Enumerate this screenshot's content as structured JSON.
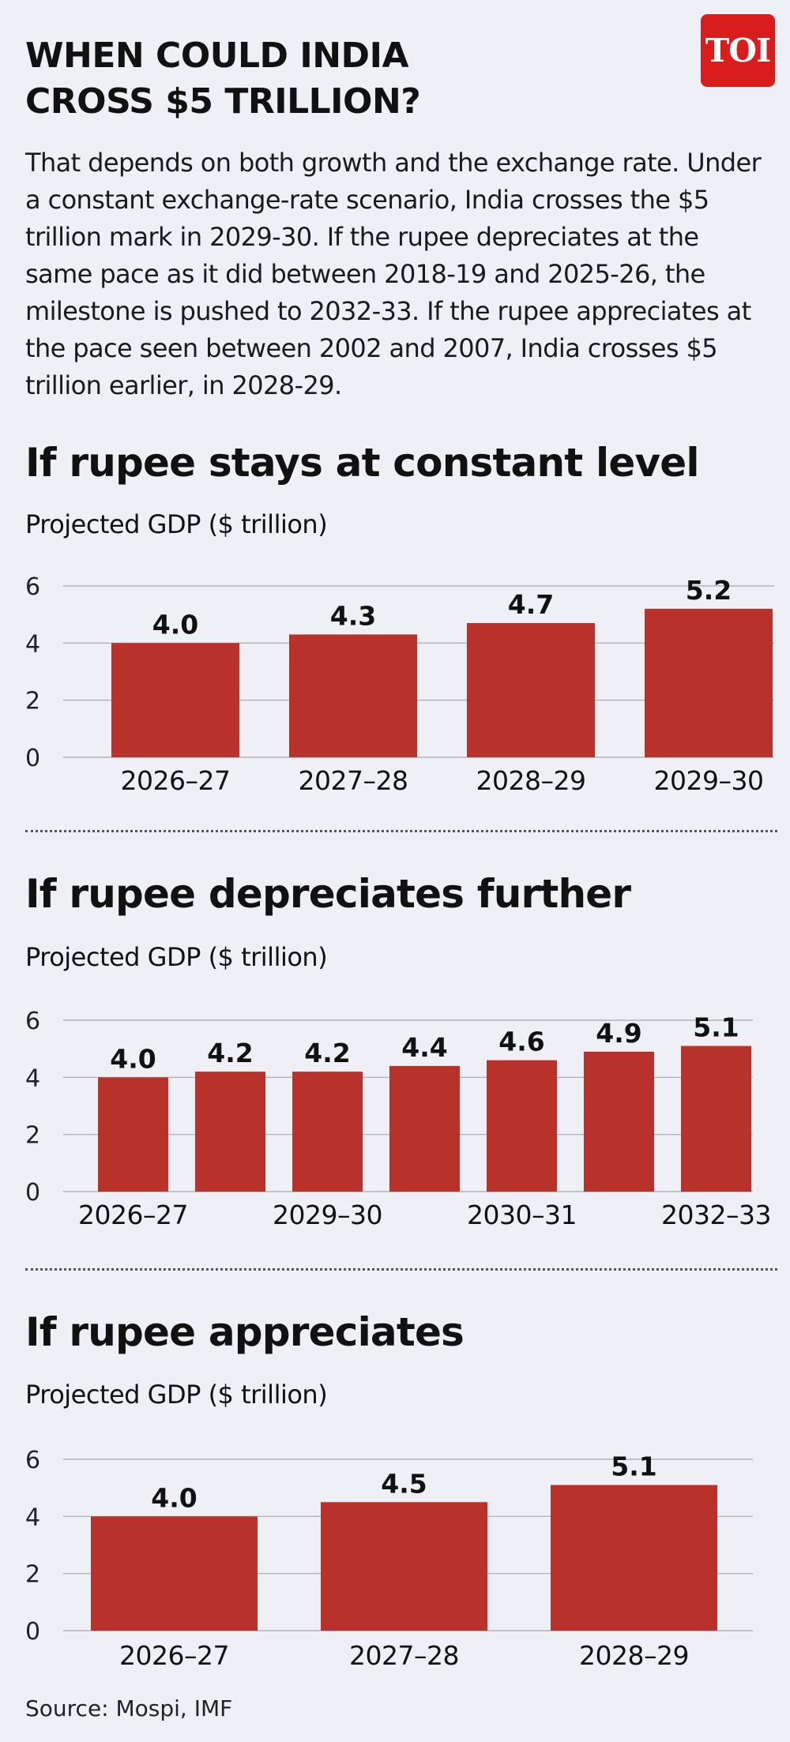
{
  "logo_text": "TOI",
  "title_line1": "WHEN COULD INDIA",
  "title_line2": "CROSS $5 TRILLION?",
  "intro": "That depends on both growth and the exchange rate. Under a constant exchange-rate scenario, India crosses the $5 trillion mark in 2029-30. If the rupee depreciates at the same pace as it did between 2018-19 and 2025-26, the milestone is pushed to 2032-33. If the rupee appreciates at the pace seen between 2002 and 2007, India crosses $5 trillion earlier, in 2028-29.",
  "colors": {
    "bar": "#b8322b",
    "grid": "#a8a8a8",
    "background": "#eef0f6"
  },
  "sections": [
    {
      "title": "If rupee stays at constant level",
      "subtitle": "Projected GDP ($ trillion)"
    },
    {
      "title": "If rupee depreciates further",
      "subtitle": "Projected GDP ($ trillion)"
    },
    {
      "title": "If rupee appreciates",
      "subtitle": "Projected GDP ($ trillion)"
    }
  ],
  "chart_data": [
    {
      "type": "bar",
      "title": "If rupee stays at constant level",
      "ylabel": "Projected GDP ($ trillion)",
      "categories": [
        "2026–27",
        "2027–28",
        "2028–29",
        "2029–30"
      ],
      "values": [
        4.0,
        4.3,
        4.7,
        5.2
      ],
      "value_labels": [
        "4.0",
        "4.3",
        "4.7",
        "5.2"
      ],
      "x_tick_labels": [
        "2026–27",
        "2027–28",
        "2028–29",
        "2029–30"
      ],
      "y_ticks": [
        0,
        2,
        4,
        6
      ],
      "ylim": [
        0,
        6
      ],
      "grid": true
    },
    {
      "type": "bar",
      "title": "If rupee depreciates further",
      "ylabel": "Projected GDP ($ trillion)",
      "categories": [
        "2026–27",
        "",
        "2029–30",
        "",
        "2030–31",
        "",
        "2032–33"
      ],
      "values": [
        4.0,
        4.2,
        4.2,
        4.4,
        4.6,
        4.9,
        5.1
      ],
      "value_labels": [
        "4.0",
        "4.2",
        "4.2",
        "4.4",
        "4.6",
        "4.9",
        "5.1"
      ],
      "x_tick_labels": [
        "2026–27",
        "2029–30",
        "2030–31",
        "2032–33"
      ],
      "y_ticks": [
        0,
        2,
        4,
        6
      ],
      "ylim": [
        0,
        6
      ],
      "grid": true
    },
    {
      "type": "bar",
      "title": "If rupee appreciates",
      "ylabel": "Projected GDP ($ trillion)",
      "categories": [
        "2026–27",
        "2027–28",
        "2028–29"
      ],
      "values": [
        4.0,
        4.5,
        5.1
      ],
      "value_labels": [
        "4.0",
        "4.5",
        "5.1"
      ],
      "x_tick_labels": [
        "2026–27",
        "2027–28",
        "2028–29"
      ],
      "y_ticks": [
        0,
        2,
        4,
        6
      ],
      "ylim": [
        0,
        6
      ],
      "grid": true
    }
  ],
  "source": "Source: Mospi, IMF"
}
